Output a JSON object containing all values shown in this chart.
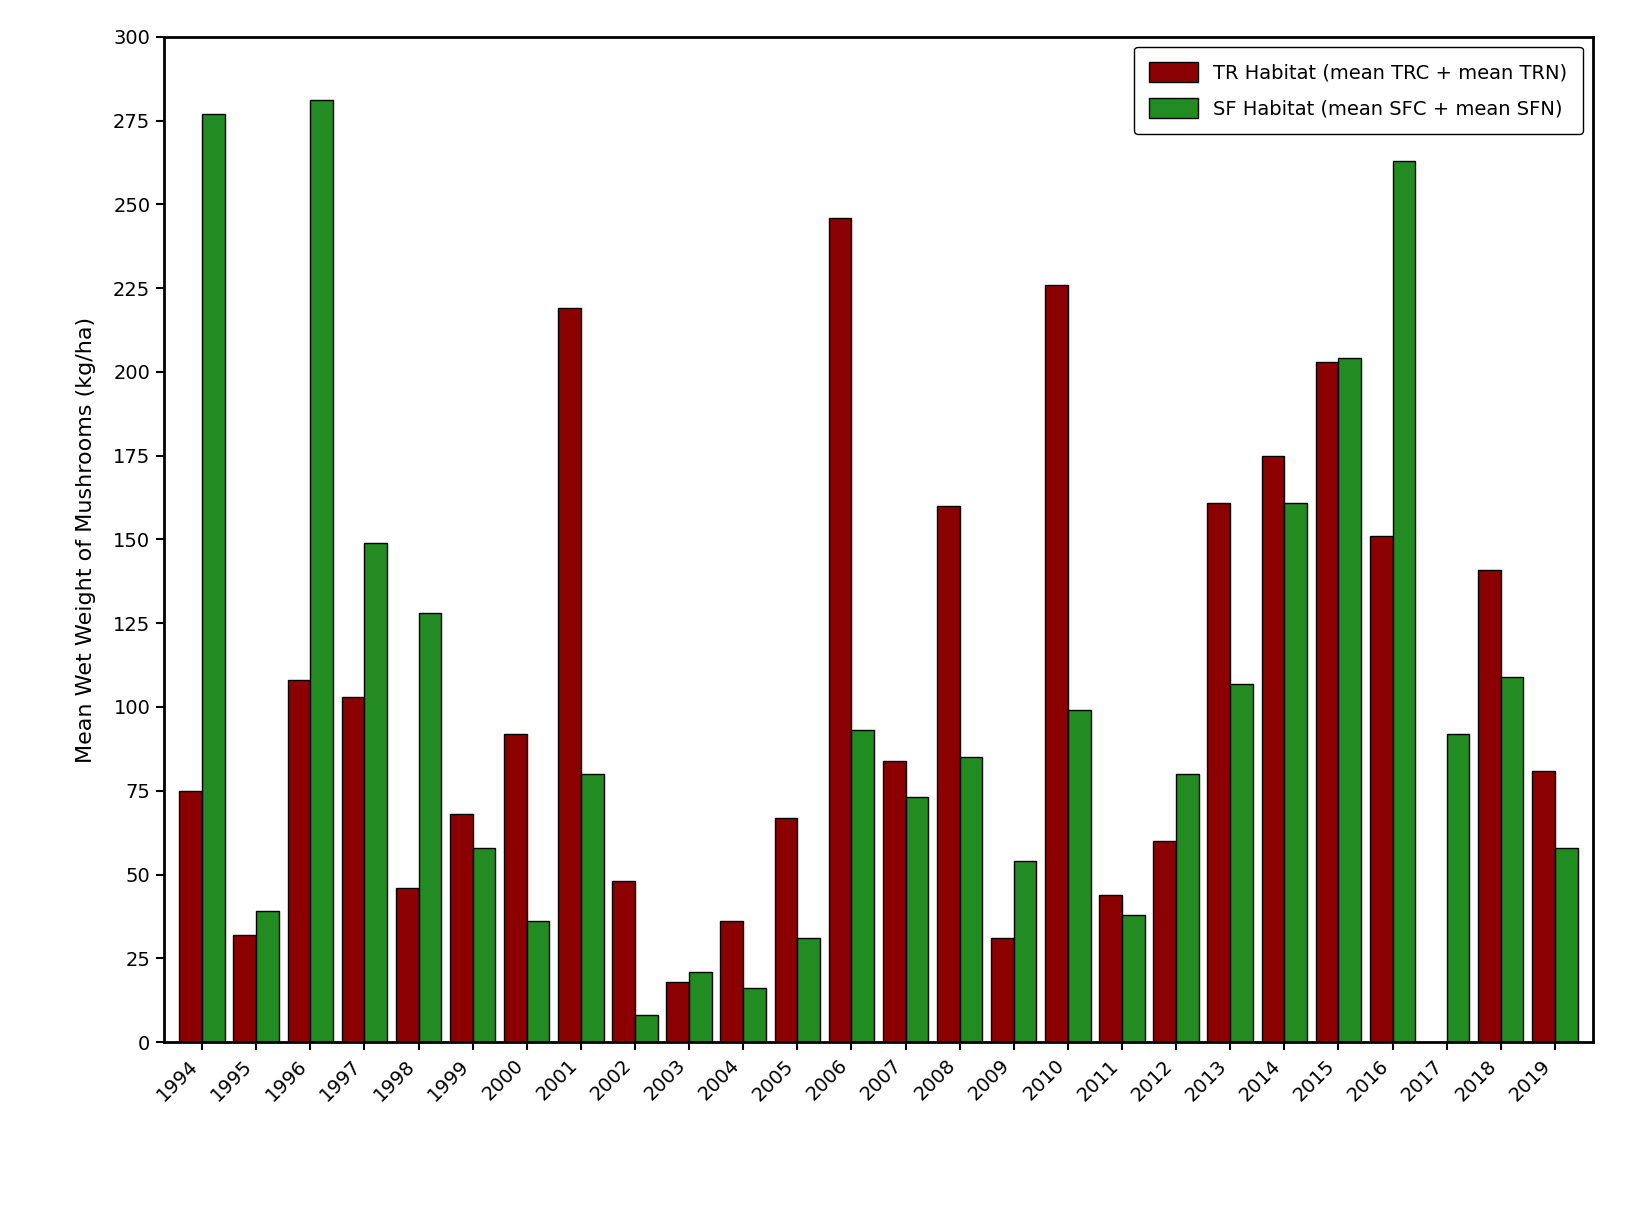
{
  "years": [
    1994,
    1995,
    1996,
    1997,
    1998,
    1999,
    2000,
    2001,
    2002,
    2003,
    2004,
    2005,
    2006,
    2007,
    2008,
    2009,
    2010,
    2011,
    2012,
    2013,
    2014,
    2015,
    2016,
    2017,
    2018,
    2019
  ],
  "tr_values": [
    75,
    32,
    108,
    103,
    46,
    68,
    92,
    219,
    48,
    18,
    36,
    67,
    246,
    84,
    160,
    31,
    226,
    44,
    60,
    161,
    175,
    203,
    151,
    0,
    141,
    81
  ],
  "sf_values": [
    277,
    39,
    281,
    149,
    128,
    58,
    36,
    80,
    8,
    21,
    16,
    31,
    93,
    73,
    85,
    54,
    99,
    38,
    80,
    107,
    161,
    204,
    263,
    92,
    109,
    58
  ],
  "tr_color": "#8B0000",
  "sf_color": "#228B22",
  "tr_bold": "TR Habitat",
  "tr_normal": " (mean TRC + mean TRN)",
  "sf_bold": "SF Habitat",
  "sf_normal": " (mean SFC + mean SFN)",
  "ylabel": "Mean Wet Weight of Mushrooms (kg/ha)",
  "ylim": [
    0,
    300
  ],
  "yticks": [
    0,
    25,
    50,
    75,
    100,
    125,
    150,
    175,
    200,
    225,
    250,
    275,
    300
  ],
  "bar_width": 0.42,
  "bar_edge_color": "#000000",
  "bar_linewidth": 1.0,
  "background_color": "#ffffff",
  "axis_linewidth": 2.0,
  "tick_fontsize": 14,
  "label_fontsize": 16,
  "legend_fontsize": 14,
  "figsize": [
    16.42,
    12.26
  ],
  "dpi": 100
}
